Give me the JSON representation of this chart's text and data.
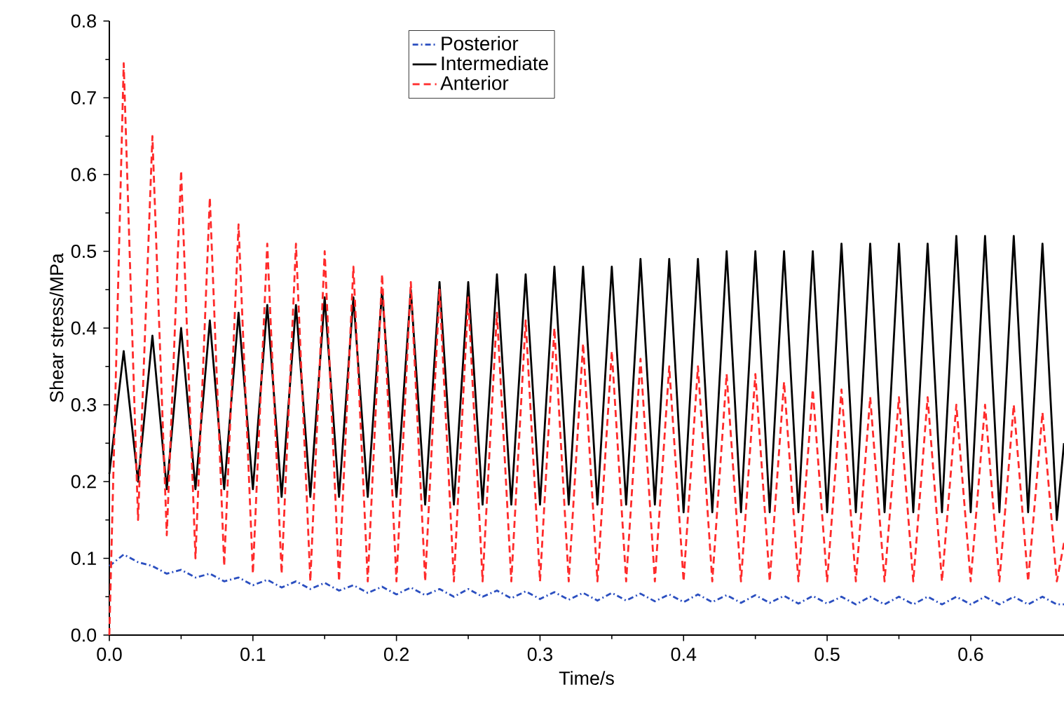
{
  "chart_data": {
    "type": "line",
    "xlabel": "Time/s",
    "ylabel": "Shear stress/MPa",
    "x": [
      0,
      0.01,
      0.02,
      0.03,
      0.04,
      0.05,
      0.06,
      0.07,
      0.08,
      0.09,
      0.1,
      0.11,
      0.12,
      0.13,
      0.14,
      0.15,
      0.16,
      0.17,
      0.18,
      0.19,
      0.2,
      0.21,
      0.22,
      0.23,
      0.24,
      0.25,
      0.26,
      0.27,
      0.28,
      0.29,
      0.3,
      0.31,
      0.32,
      0.33,
      0.34,
      0.35,
      0.36,
      0.37,
      0.38,
      0.39,
      0.4,
      0.41,
      0.42,
      0.43,
      0.44,
      0.45,
      0.46,
      0.47,
      0.48,
      0.49,
      0.5,
      0.51,
      0.52,
      0.53,
      0.54,
      0.55,
      0.56,
      0.57,
      0.58,
      0.59,
      0.6,
      0.61,
      0.62,
      0.63,
      0.64,
      0.65,
      0.66,
      0.665
    ],
    "series": [
      {
        "name": "Posterior",
        "color": "#2b4fc0",
        "line_style": "dashdot",
        "values": [
          0.09,
          0.105,
          0.095,
          0.09,
          0.08,
          0.085,
          0.075,
          0.08,
          0.07,
          0.075,
          0.065,
          0.072,
          0.062,
          0.07,
          0.06,
          0.068,
          0.058,
          0.065,
          0.055,
          0.063,
          0.053,
          0.062,
          0.052,
          0.06,
          0.05,
          0.06,
          0.05,
          0.058,
          0.048,
          0.057,
          0.047,
          0.056,
          0.046,
          0.055,
          0.045,
          0.055,
          0.045,
          0.054,
          0.044,
          0.053,
          0.043,
          0.053,
          0.043,
          0.052,
          0.042,
          0.052,
          0.042,
          0.051,
          0.041,
          0.051,
          0.041,
          0.05,
          0.04,
          0.05,
          0.04,
          0.05,
          0.04,
          0.05,
          0.04,
          0.05,
          0.04,
          0.05,
          0.04,
          0.05,
          0.04,
          0.05,
          0.04,
          0.04
        ]
      },
      {
        "name": "Intermediate",
        "color": "#000000",
        "line_style": "solid",
        "values": [
          0.21,
          0.37,
          0.2,
          0.39,
          0.19,
          0.4,
          0.19,
          0.41,
          0.19,
          0.42,
          0.19,
          0.43,
          0.18,
          0.43,
          0.18,
          0.44,
          0.18,
          0.44,
          0.18,
          0.45,
          0.18,
          0.45,
          0.17,
          0.46,
          0.17,
          0.46,
          0.17,
          0.47,
          0.17,
          0.47,
          0.17,
          0.48,
          0.17,
          0.48,
          0.17,
          0.48,
          0.17,
          0.49,
          0.17,
          0.49,
          0.16,
          0.49,
          0.16,
          0.5,
          0.16,
          0.5,
          0.16,
          0.5,
          0.16,
          0.5,
          0.16,
          0.51,
          0.16,
          0.51,
          0.16,
          0.51,
          0.16,
          0.51,
          0.16,
          0.52,
          0.16,
          0.52,
          0.16,
          0.52,
          0.16,
          0.51,
          0.15,
          0.25
        ]
      },
      {
        "name": "Anterior",
        "color": "#ff2a2a",
        "line_style": "dashed",
        "values": [
          0.0,
          0.745,
          0.15,
          0.65,
          0.13,
          0.605,
          0.1,
          0.57,
          0.09,
          0.535,
          0.08,
          0.51,
          0.08,
          0.51,
          0.07,
          0.5,
          0.07,
          0.48,
          0.07,
          0.47,
          0.07,
          0.46,
          0.07,
          0.45,
          0.07,
          0.44,
          0.07,
          0.42,
          0.07,
          0.41,
          0.07,
          0.4,
          0.07,
          0.38,
          0.07,
          0.37,
          0.07,
          0.36,
          0.07,
          0.35,
          0.07,
          0.35,
          0.07,
          0.34,
          0.07,
          0.34,
          0.07,
          0.33,
          0.07,
          0.32,
          0.07,
          0.32,
          0.07,
          0.31,
          0.07,
          0.31,
          0.07,
          0.31,
          0.07,
          0.3,
          0.07,
          0.3,
          0.07,
          0.3,
          0.07,
          0.29,
          0.07,
          0.12
        ]
      }
    ],
    "xlim": [
      0,
      0.665
    ],
    "ylim": [
      0,
      0.8
    ],
    "xticks": [
      {
        "value": 0,
        "label": "0.0"
      },
      0.1,
      0.2,
      0.3,
      0.4,
      0.5,
      0.6
    ],
    "yticks": [
      {
        "value": 0,
        "label": "0.0"
      },
      0.1,
      0.2,
      0.3,
      0.4,
      0.5,
      0.6,
      0.7,
      0.8
    ],
    "grid": false,
    "legend": "top",
    "marker": "none"
  }
}
